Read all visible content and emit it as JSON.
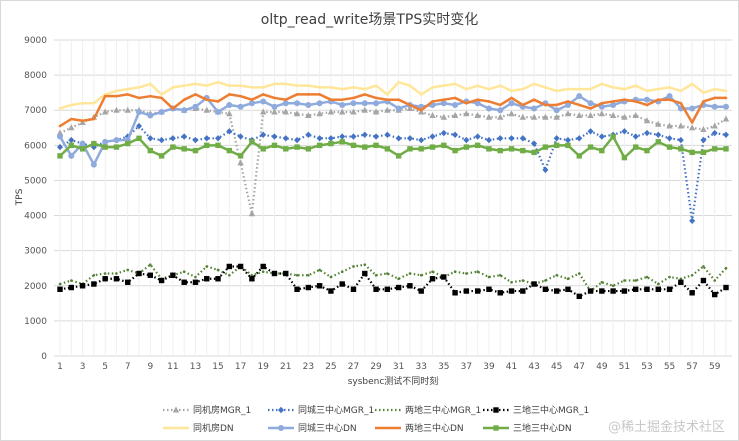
{
  "chart_data": {
    "type": "line",
    "title": "oltp_read_write场景TPS实时变化",
    "xlabel": "sysbenc测试不同时刻",
    "ylabel": "TPS",
    "ylim": [
      0,
      9000
    ],
    "yticks": [
      0,
      1000,
      2000,
      3000,
      4000,
      5000,
      6000,
      7000,
      8000,
      9000
    ],
    "x": [
      1,
      2,
      3,
      4,
      5,
      6,
      7,
      8,
      9,
      10,
      11,
      12,
      13,
      14,
      15,
      16,
      17,
      18,
      19,
      20,
      21,
      22,
      23,
      24,
      25,
      26,
      27,
      28,
      29,
      30,
      31,
      32,
      33,
      34,
      35,
      36,
      37,
      38,
      39,
      40,
      41,
      42,
      43,
      44,
      45,
      46,
      47,
      48,
      49,
      50,
      51,
      52,
      53,
      54,
      55,
      56,
      57,
      58,
      59,
      60
    ],
    "xtick_labels": [
      "1",
      "3",
      "5",
      "7",
      "9",
      "11",
      "13",
      "15",
      "17",
      "19",
      "21",
      "23",
      "25",
      "27",
      "29",
      "31",
      "33",
      "35",
      "37",
      "39",
      "41",
      "43",
      "45",
      "47",
      "49",
      "51",
      "53",
      "55",
      "57",
      "59"
    ],
    "series": [
      {
        "name": "同机房MGR_1",
        "color": "#a5a5a5",
        "style": "dotted",
        "marker": "triangle",
        "values": [
          6350,
          6500,
          6650,
          6800,
          6950,
          7000,
          7000,
          7000,
          6900,
          6950,
          7050,
          7000,
          7050,
          7000,
          6950,
          6900,
          5500,
          4050,
          6950,
          6950,
          6950,
          6900,
          6850,
          6900,
          6950,
          6950,
          6950,
          7000,
          6950,
          7000,
          7000,
          7050,
          6950,
          6850,
          6800,
          6850,
          6900,
          6850,
          6800,
          6800,
          6900,
          6800,
          6800,
          6800,
          6800,
          6900,
          6850,
          6850,
          6900,
          6850,
          6800,
          6850,
          6700,
          6600,
          6550,
          6550,
          6500,
          6450,
          6550,
          6750
        ]
      },
      {
        "name": "同城三中心MGR_1",
        "color": "#4472c4",
        "style": "dotted",
        "marker": "diamond",
        "values": [
          5950,
          6150,
          6050,
          5950,
          6100,
          6150,
          6250,
          6550,
          6200,
          6150,
          6200,
          6250,
          6150,
          6200,
          6200,
          6400,
          6250,
          6150,
          6300,
          6250,
          6200,
          6150,
          6300,
          6200,
          6200,
          6250,
          6250,
          6300,
          6250,
          6300,
          6200,
          6200,
          6150,
          6250,
          6350,
          6300,
          6150,
          6250,
          6150,
          6200,
          6200,
          6200,
          6050,
          5300,
          6200,
          6150,
          6200,
          6400,
          6250,
          6300,
          6400,
          6250,
          6350,
          6300,
          6200,
          6150,
          3850,
          6150,
          6350,
          6300
        ]
      },
      {
        "name": "两地三中心MGR_1",
        "color": "#548235",
        "style": "dotted",
        "marker": "none",
        "values": [
          2050,
          2150,
          2050,
          2300,
          2350,
          2350,
          2450,
          2350,
          2600,
          2200,
          2300,
          2400,
          2250,
          2550,
          2450,
          2300,
          2550,
          2300,
          2400,
          2350,
          2350,
          2300,
          2300,
          2450,
          2250,
          2400,
          2550,
          2600,
          2300,
          2350,
          2200,
          2350,
          2300,
          2400,
          2250,
          2400,
          2350,
          2400,
          2250,
          2300,
          2100,
          2150,
          2050,
          2150,
          2300,
          2200,
          2350,
          1850,
          2100,
          2000,
          2150,
          2150,
          2250,
          2050,
          2250,
          2200,
          2300,
          2550,
          2150,
          2500
        ]
      },
      {
        "name": "三地三中心MGR_1",
        "color": "#000000",
        "style": "dotted",
        "marker": "square",
        "values": [
          1900,
          1950,
          2000,
          2050,
          2200,
          2200,
          2100,
          2350,
          2300,
          2150,
          2300,
          2100,
          2100,
          2200,
          2200,
          2550,
          2550,
          2200,
          2550,
          2350,
          2350,
          1900,
          1950,
          2000,
          1850,
          2050,
          1900,
          2350,
          1900,
          1900,
          1950,
          2000,
          1850,
          2200,
          2250,
          1800,
          1850,
          1850,
          1900,
          1800,
          1850,
          1850,
          2050,
          1900,
          1850,
          1900,
          1700,
          1850,
          1850,
          1850,
          1850,
          1900,
          1900,
          1900,
          1900,
          2100,
          1800,
          2150,
          1750,
          1950
        ]
      },
      {
        "name": "同机房DN",
        "color": "#ffe699",
        "style": "solid",
        "marker": "none",
        "values": [
          7050,
          7150,
          7200,
          7200,
          7450,
          7550,
          7600,
          7650,
          7750,
          7450,
          7650,
          7700,
          7750,
          7700,
          7800,
          7700,
          7700,
          7650,
          7650,
          7750,
          7750,
          7700,
          7700,
          7650,
          7650,
          7600,
          7650,
          7600,
          7700,
          7450,
          7800,
          7700,
          7450,
          7650,
          7700,
          7750,
          7600,
          7700,
          7600,
          7700,
          7550,
          7600,
          7750,
          7650,
          7550,
          7600,
          7600,
          7600,
          7750,
          7650,
          7600,
          7700,
          7550,
          7600,
          7650,
          7550,
          7750,
          7500,
          7600,
          7550
        ]
      },
      {
        "name": "同城三中心DN",
        "color": "#8faadc",
        "style": "solid",
        "marker": "circle",
        "values": [
          6250,
          5700,
          6050,
          5450,
          6100,
          6150,
          6150,
          6950,
          6850,
          6950,
          7050,
          7000,
          7100,
          7350,
          6950,
          7150,
          7100,
          7200,
          7250,
          7100,
          7200,
          7200,
          7150,
          7200,
          7250,
          7150,
          7200,
          7200,
          7200,
          7250,
          7050,
          7150,
          7100,
          7150,
          7200,
          7150,
          7250,
          7200,
          7050,
          7000,
          7200,
          7100,
          7050,
          7200,
          7000,
          7150,
          7400,
          7200,
          7100,
          7150,
          7250,
          7300,
          7300,
          7250,
          7400,
          7050,
          7050,
          7150,
          7100,
          7100
        ]
      },
      {
        "name": "两地三中心DN",
        "color": "#ed7d31",
        "style": "solid",
        "marker": "none",
        "values": [
          6550,
          6750,
          6700,
          6750,
          7400,
          7400,
          7450,
          7350,
          7400,
          7350,
          7050,
          7300,
          7450,
          7300,
          7250,
          7450,
          7400,
          7300,
          7450,
          7350,
          7300,
          7450,
          7450,
          7450,
          7300,
          7300,
          7350,
          7450,
          7350,
          7300,
          7300,
          7150,
          7000,
          7250,
          7300,
          7350,
          7200,
          7300,
          7250,
          7150,
          7350,
          7150,
          7300,
          7150,
          7150,
          7250,
          7150,
          7050,
          7200,
          7250,
          7300,
          7250,
          7150,
          7300,
          7300,
          7200,
          6650,
          7250,
          7350,
          7350
        ]
      },
      {
        "name": "三地三中心DN",
        "color": "#70ad47",
        "style": "solid",
        "marker": "square",
        "values": [
          5700,
          6000,
          5900,
          6050,
          5950,
          5950,
          6050,
          6200,
          5850,
          5700,
          5950,
          5900,
          5850,
          6000,
          6000,
          5850,
          5700,
          6100,
          5900,
          6000,
          5900,
          5950,
          5900,
          6000,
          6050,
          6100,
          6000,
          5950,
          6000,
          5900,
          5700,
          5900,
          5900,
          5950,
          6000,
          5850,
          5950,
          6000,
          5900,
          5850,
          5900,
          5850,
          5800,
          5950,
          6000,
          6000,
          5700,
          5950,
          5850,
          6250,
          5650,
          5950,
          5850,
          6100,
          5950,
          5900,
          5800,
          5800,
          5900,
          5900
        ]
      }
    ]
  },
  "watermark": "@稀土掘金技术社区"
}
